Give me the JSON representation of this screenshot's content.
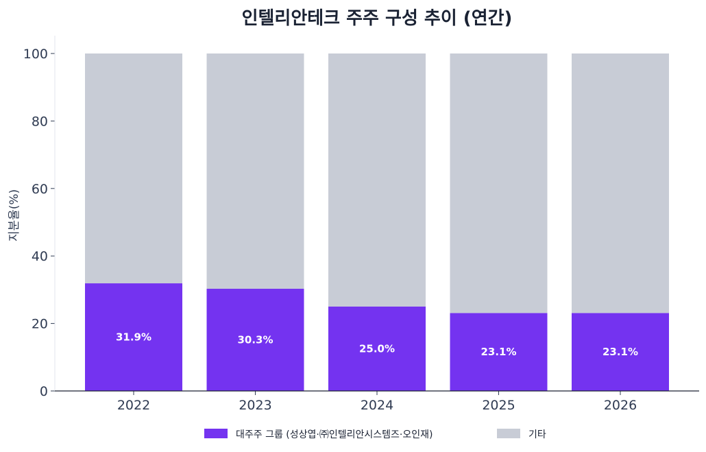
{
  "chart_data": {
    "type": "bar",
    "stacked": true,
    "title": "인텔리안테크 주주 구성 추이 (연간)",
    "xlabel": "",
    "ylabel": "지분율(%)",
    "ylim": [
      0,
      100
    ],
    "yticks": [
      "0",
      "20",
      "40",
      "60",
      "80",
      "100"
    ],
    "categories": [
      "2022",
      "2023",
      "2024",
      "2025",
      "2026"
    ],
    "series": [
      {
        "name": "대주주 그룹 (성상엽·㈜인텔리안시스템즈·오인재)",
        "color": "#7433f0",
        "values": [
          31.9,
          30.3,
          25.0,
          23.1,
          23.1
        ],
        "labels": [
          "31.9%",
          "30.3%",
          "25.0%",
          "23.1%",
          "23.1%"
        ]
      },
      {
        "name": "기타",
        "color": "#c8ccd6",
        "values": [
          68.1,
          69.7,
          75.0,
          76.9,
          76.9
        ]
      }
    ],
    "grid": false,
    "legend_position": "bottom"
  }
}
